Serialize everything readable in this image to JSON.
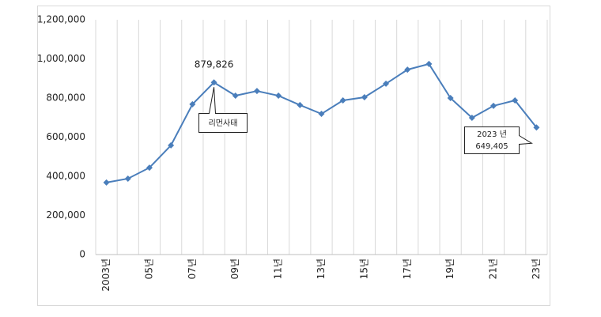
{
  "chart_data": {
    "type": "line",
    "categories": [
      "2003년",
      null,
      "05년",
      null,
      "07년",
      null,
      "09년",
      null,
      "11년",
      null,
      "13년",
      null,
      "15년",
      null,
      "17년",
      null,
      "19년",
      null,
      "21년",
      null,
      "23년"
    ],
    "series": [
      {
        "color": "#4a7ebb",
        "values": [
          368000,
          388000,
          444000,
          558000,
          768000,
          879826,
          812000,
          836000,
          812000,
          764000,
          719000,
          788000,
          804000,
          873000,
          945000,
          974000,
          800000,
          699000,
          760000,
          788000,
          649405
        ],
        "value_labels": [
          null,
          null,
          null,
          null,
          null,
          "879,826",
          null,
          null,
          null,
          null,
          null,
          null,
          null,
          null,
          null,
          null,
          null,
          null,
          null,
          null,
          "649,405"
        ]
      }
    ],
    "annotations": [
      "리먼사태",
      "2023 년"
    ],
    "ylim": [
      0,
      1200000
    ],
    "yticks": [
      0,
      {
        "value": 200000,
        "label": "200,000"
      },
      {
        "value": 400000,
        "label": "400,000"
      },
      {
        "value": 600000,
        "label": "600,000"
      },
      {
        "value": 800000,
        "label": "800,000"
      },
      {
        "value": 1000000,
        "label": "1,000,000"
      },
      {
        "value": 1200000,
        "label": "1,200,000"
      }
    ],
    "grid": true
  }
}
